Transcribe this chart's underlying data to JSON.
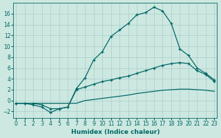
{
  "xlabel": "Humidex (Indice chaleur)",
  "bg_color": "#cce8e0",
  "grid_color": "#aacccc",
  "line_color": "#006666",
  "x_ticks": [
    0,
    1,
    2,
    3,
    4,
    5,
    6,
    7,
    8,
    9,
    10,
    11,
    12,
    13,
    14,
    15,
    16,
    17,
    18,
    19,
    20,
    21,
    22,
    23
  ],
  "y_ticks": [
    -2,
    0,
    2,
    4,
    6,
    8,
    10,
    12,
    14,
    16
  ],
  "ylim": [
    -3.2,
    18.0
  ],
  "xlim": [
    -0.3,
    23.3
  ],
  "curve1_x": [
    0,
    1,
    2,
    3,
    4,
    5,
    6,
    7,
    8,
    9,
    10,
    11,
    12,
    13,
    14,
    15,
    16,
    17,
    18,
    19,
    20,
    21,
    22,
    23
  ],
  "curve1_y": [
    -0.5,
    -0.5,
    -0.8,
    -1.2,
    -2.2,
    -1.5,
    -1.2,
    2.2,
    4.2,
    7.5,
    9.0,
    11.8,
    13.0,
    14.2,
    15.8,
    16.2,
    17.2,
    16.5,
    14.2,
    9.5,
    8.3,
    6.0,
    5.0,
    3.8
  ],
  "curve2_x": [
    0,
    1,
    2,
    3,
    4,
    5,
    6,
    7,
    8,
    9,
    10,
    11,
    12,
    13,
    14,
    15,
    16,
    17,
    18,
    19,
    20,
    21,
    22,
    23
  ],
  "curve2_y": [
    -0.5,
    -0.5,
    -0.5,
    -0.8,
    -1.5,
    -1.5,
    -1.2,
    2.0,
    2.5,
    3.0,
    3.5,
    3.8,
    4.2,
    4.5,
    5.0,
    5.5,
    6.0,
    6.5,
    6.8,
    7.0,
    6.8,
    5.5,
    4.8,
    3.5
  ],
  "curve3_x": [
    0,
    1,
    2,
    3,
    4,
    5,
    6,
    7,
    8,
    9,
    10,
    11,
    12,
    13,
    14,
    15,
    16,
    17,
    18,
    19,
    20,
    21,
    22,
    23
  ],
  "curve3_y": [
    -0.5,
    -0.5,
    -0.5,
    -0.5,
    -0.5,
    -0.5,
    -0.5,
    -0.5,
    0.0,
    0.2,
    0.4,
    0.6,
    0.8,
    1.0,
    1.3,
    1.5,
    1.7,
    1.9,
    2.0,
    2.1,
    2.1,
    2.0,
    1.9,
    1.7
  ]
}
